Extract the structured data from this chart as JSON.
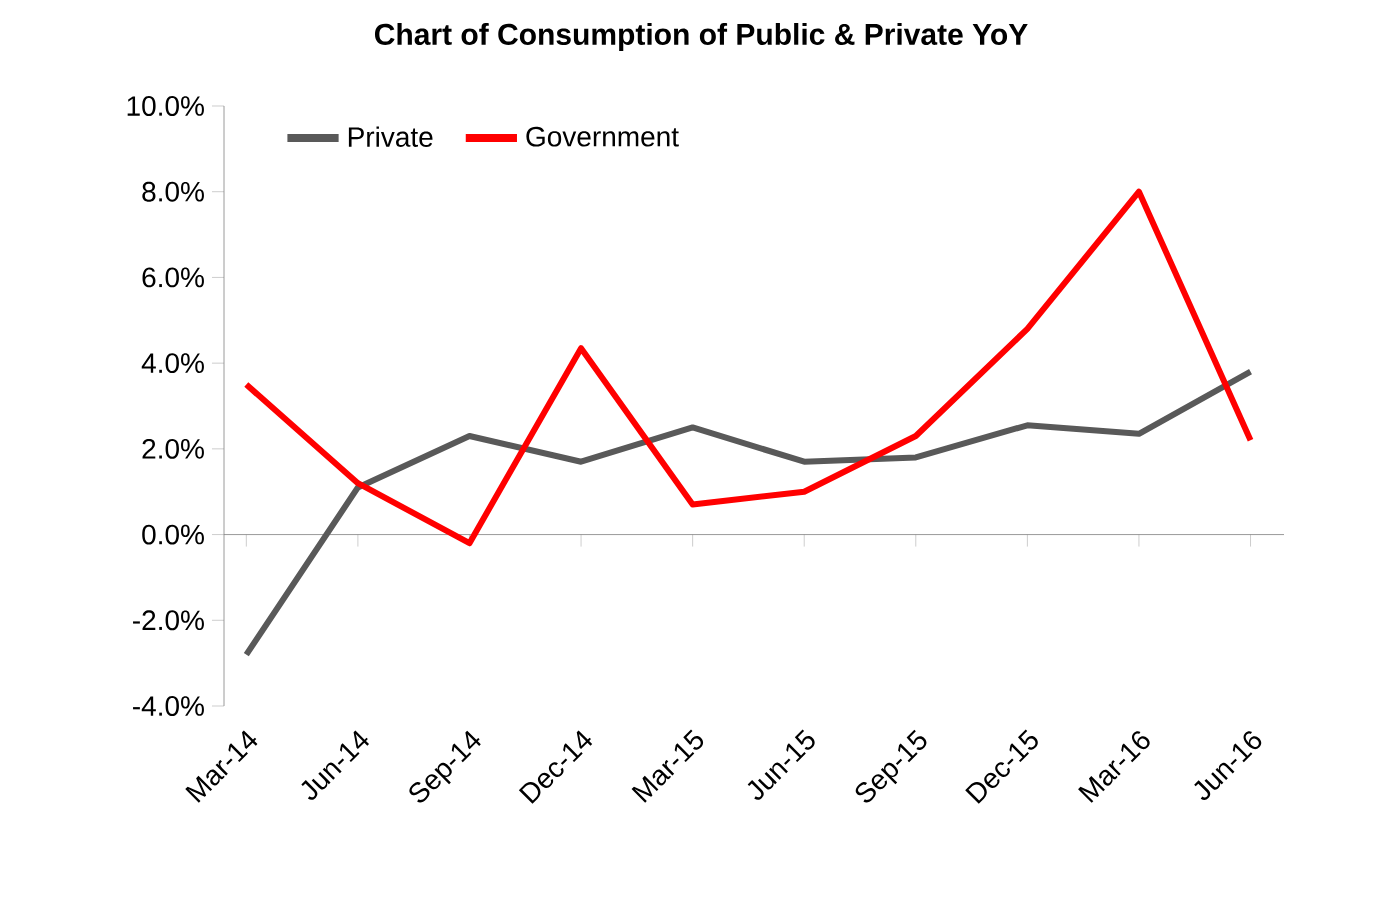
{
  "chart_data": {
    "type": "line",
    "title": "Chart of Consumption of Public & Private YoY",
    "categories": [
      "Mar-14",
      "Jun-14",
      "Sep-14",
      "Dec-14",
      "Mar-15",
      "Jun-15",
      "Sep-15",
      "Dec-15",
      "Mar-16",
      "Jun-16"
    ],
    "series": [
      {
        "name": "Private",
        "color": "#595959",
        "values": [
          -2.8,
          1.1,
          2.3,
          1.7,
          2.5,
          1.7,
          1.8,
          2.55,
          2.35,
          3.8
        ]
      },
      {
        "name": "Government",
        "color": "#ff0000",
        "values": [
          3.5,
          1.2,
          -0.2,
          4.35,
          0.7,
          1.0,
          2.3,
          4.8,
          8.0,
          2.2
        ]
      }
    ],
    "ylim": [
      -4,
      10
    ],
    "yticks": [
      {
        "value": -4,
        "label": "-4.0%"
      },
      {
        "value": -2,
        "label": "-2.0%"
      },
      {
        "value": 0,
        "label": "0.0%"
      },
      {
        "value": 2,
        "label": "2.0%"
      },
      {
        "value": 4,
        "label": "4.0%"
      },
      {
        "value": 6,
        "label": "6.0%"
      },
      {
        "value": 8,
        "label": "8.0%"
      },
      {
        "value": 10,
        "label": "10.0%"
      }
    ],
    "legend": "top left",
    "marker": "none",
    "line_style": "solid"
  }
}
